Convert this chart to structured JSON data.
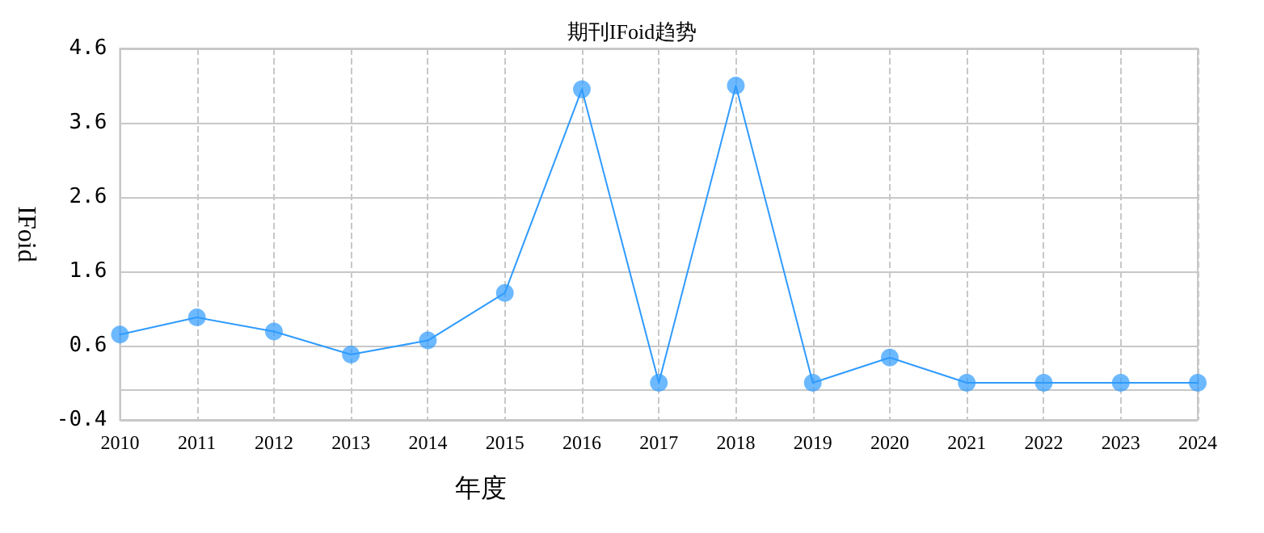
{
  "chart_data": {
    "type": "line",
    "title": "期刊IFoid趋势",
    "xlabel": "年度",
    "ylabel": "IFoid",
    "categories": [
      "2010",
      "2011",
      "2012",
      "2013",
      "2014",
      "2015",
      "2016",
      "2017",
      "2018",
      "2019",
      "2020",
      "2021",
      "2022",
      "2023",
      "2024"
    ],
    "series": [
      {
        "color": "#2f9bff",
        "values": [
          0.75,
          0.98,
          0.79,
          0.48,
          0.67,
          1.31,
          4.05,
          0.1,
          4.1,
          0.1,
          0.44,
          0.1,
          0.1,
          0.1,
          0.1
        ]
      }
    ],
    "ylim": [
      -0.4,
      4.6
    ],
    "yticks": [
      -0.4,
      0.6,
      1.6,
      2.6,
      3.6,
      4.6
    ],
    "grid": true,
    "marker": "circle",
    "line_style": "solid"
  }
}
